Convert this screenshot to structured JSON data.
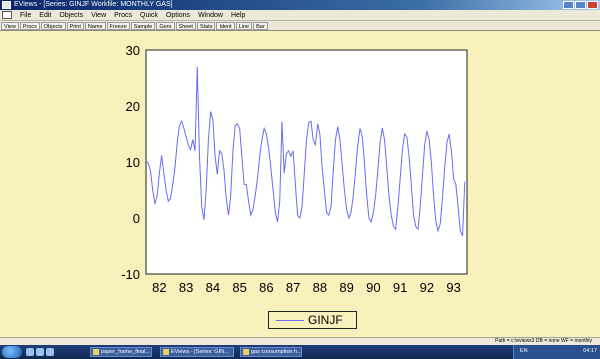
{
  "window": {
    "title": "EViews - [Series: GINJF   Workfile: MONTHLY GAS]"
  },
  "menu": [
    "File",
    "Edit",
    "Objects",
    "View",
    "Procs",
    "Quick",
    "Options",
    "Window",
    "Help"
  ],
  "toolbar": [
    "View",
    "Procs",
    "Objects",
    "Print",
    "Name",
    "Freeze",
    "Sample",
    "Genr",
    "Sheet",
    "Stats",
    "Ident",
    "Line",
    "Bar"
  ],
  "chart_data": {
    "type": "line",
    "ylim": [
      -10,
      30
    ],
    "y_ticks": [
      "30",
      "20",
      "10",
      "0",
      "-10"
    ],
    "x_ticks": [
      "82",
      "83",
      "84",
      "85",
      "86",
      "87",
      "88",
      "89",
      "90",
      "91",
      "92",
      "93"
    ],
    "series": [
      {
        "name": "GINJF",
        "color": "#6a6cf0",
        "x_start": 1982,
        "x_end": 1993.917,
        "values": [
          10.2,
          9.8,
          8.5,
          5.0,
          2.5,
          4.0,
          8.0,
          11.2,
          8.0,
          5.0,
          3.0,
          3.5,
          6.0,
          9.0,
          13.5,
          16.5,
          17.3,
          16.0,
          14.5,
          13.0,
          12.2,
          14.0,
          12.0,
          27.0,
          11.0,
          2.0,
          -0.3,
          5.0,
          14.0,
          19.0,
          17.5,
          11.0,
          7.8,
          12.0,
          11.5,
          8.5,
          3.5,
          0.5,
          4.0,
          12.0,
          16.5,
          16.8,
          16.0,
          11.0,
          6.0,
          6.0,
          3.0,
          0.5,
          1.5,
          4.0,
          7.0,
          11.0,
          14.0,
          16.0,
          15.0,
          12.5,
          9.0,
          5.0,
          1.0,
          -0.7,
          3.0,
          17.2,
          8.0,
          11.5,
          12.0,
          11.0,
          12.0,
          6.0,
          0.5,
          0.0,
          2.0,
          8.0,
          14.0,
          17.0,
          17.3,
          14.0,
          13.0,
          16.8,
          15.0,
          9.0,
          5.0,
          1.0,
          0.5,
          2.0,
          8.5,
          14.0,
          16.3,
          14.0,
          9.5,
          5.0,
          1.5,
          0.0,
          1.0,
          4.0,
          8.5,
          13.0,
          16.0,
          14.5,
          10.0,
          4.0,
          0.0,
          -0.7,
          1.0,
          4.0,
          8.5,
          13.5,
          16.1,
          14.0,
          9.0,
          4.0,
          0.5,
          -1.5,
          -2.0,
          2.0,
          7.0,
          12.0,
          15.0,
          14.5,
          11.0,
          6.0,
          0.5,
          -1.5,
          -2.0,
          2.0,
          7.5,
          13.0,
          15.5,
          14.0,
          10.0,
          4.0,
          -0.5,
          -2.3,
          -1.0,
          3.5,
          9.0,
          13.5,
          15.0,
          12.0,
          7.0,
          6.0,
          2.0,
          -2.3,
          -3.2,
          6.5
        ]
      }
    ]
  },
  "status": {
    "text": "Path = c:\\eviews3   DB = none   WF = monthly"
  },
  "taskbar": {
    "tasks": [
      "paper_frame_final...",
      "EViews - [Series: GIN...",
      "gas consumption h..."
    ],
    "tray_text": "EN",
    "clock": "04:17"
  }
}
